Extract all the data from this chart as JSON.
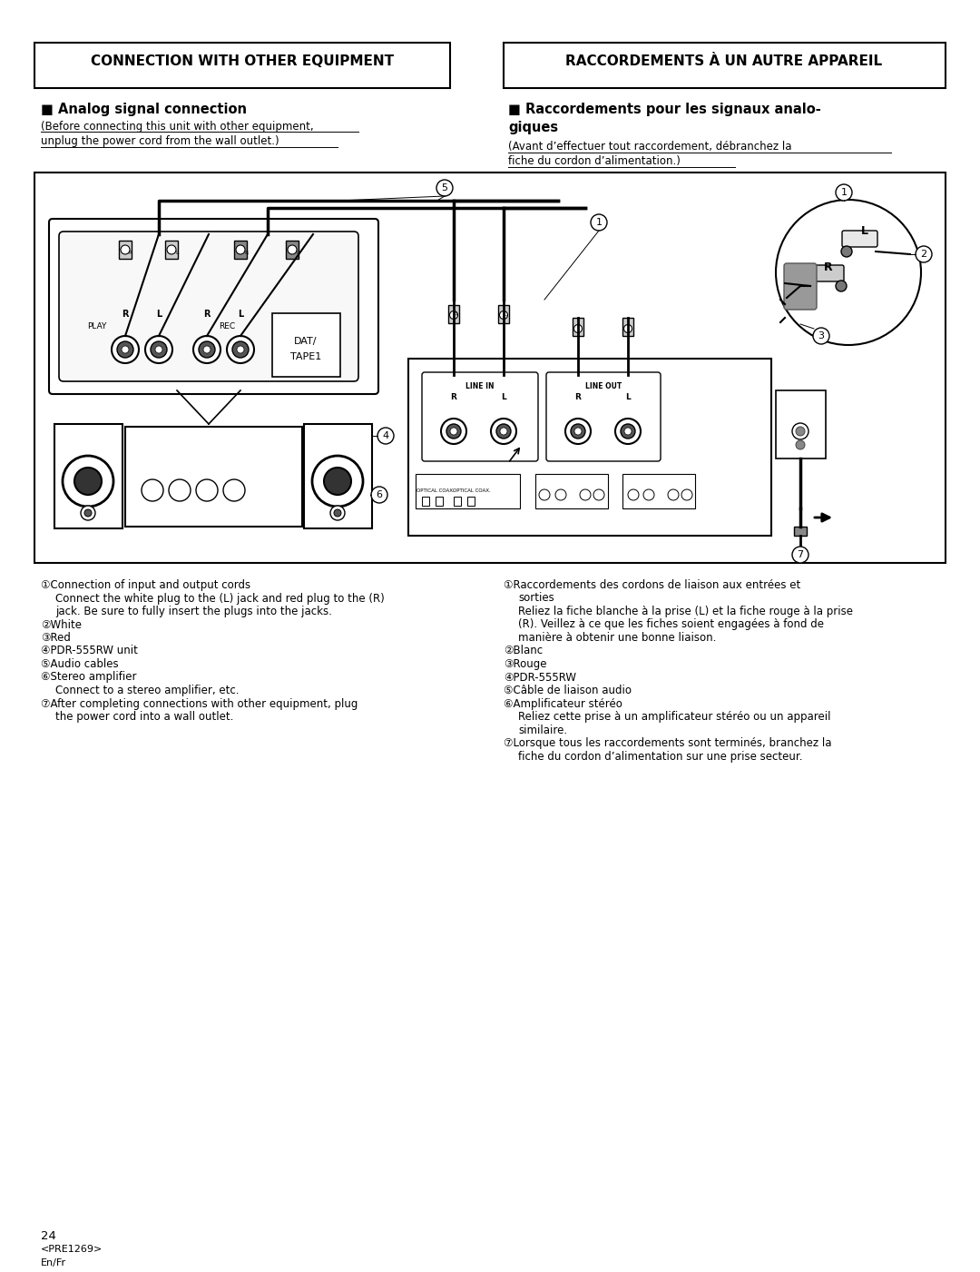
{
  "background_color": "#ffffff",
  "page_width": 10.8,
  "page_height": 14.01,
  "left_header": "CONNECTION WITH OTHER EQUIPMENT",
  "right_header": "RACCORDEMENTS À UN AUTRE APPAREIL",
  "left_section_title": "■ Analog signal connection",
  "left_subtitle_line1": "(Before connecting this unit with other equipment,",
  "left_subtitle_line2": "unplug the power cord from the wall outlet.)",
  "right_section_title_line1": "■ Raccordements pour les signaux analo-",
  "right_section_title_line2": "giques",
  "right_subtitle_line1": "(Avant d’effectuer tout raccordement, débranchez la",
  "right_subtitle_line2": "fiche du cordon d’alimentation.)",
  "left_notes_raw": [
    {
      "bullet": "①",
      "title": "Connection of input and output cords",
      "indent": false
    },
    {
      "bullet": "",
      "title": "Connect the white plug to the (L) jack and red plug to the (R)",
      "indent": true
    },
    {
      "bullet": "",
      "title": "jack. Be sure to fully insert the plugs into the jacks.",
      "indent": true
    },
    {
      "bullet": "②",
      "title": "White",
      "indent": false
    },
    {
      "bullet": "③",
      "title": "Red",
      "indent": false
    },
    {
      "bullet": "④",
      "title": "PDR-555RW unit",
      "indent": false
    },
    {
      "bullet": "⑤",
      "title": "Audio cables",
      "indent": false
    },
    {
      "bullet": "⑥",
      "title": "Stereo amplifier",
      "indent": false
    },
    {
      "bullet": "",
      "title": "Connect to a stereo amplifier, etc.",
      "indent": true
    },
    {
      "bullet": "⑦",
      "title": "After completing connections with other equipment, plug",
      "indent": false
    },
    {
      "bullet": "",
      "title": "the power cord into a wall outlet.",
      "indent": true
    }
  ],
  "right_notes_raw": [
    {
      "bullet": "①",
      "title": "Raccordements des cordons de liaison aux entrées et",
      "indent": false
    },
    {
      "bullet": "",
      "title": "sorties",
      "indent": true
    },
    {
      "bullet": "",
      "title": "Reliez la fiche blanche à la prise (L) et la fiche rouge à la prise",
      "indent": true
    },
    {
      "bullet": "",
      "title": "(R). Veillez à ce que les fiches soient engagées à fond de",
      "indent": true
    },
    {
      "bullet": "",
      "title": "manière à obtenir une bonne liaison.",
      "indent": true
    },
    {
      "bullet": "②",
      "title": "Blanc",
      "indent": false
    },
    {
      "bullet": "③",
      "title": "Rouge",
      "indent": false
    },
    {
      "bullet": "④",
      "title": "PDR-555RW",
      "indent": false
    },
    {
      "bullet": "⑤",
      "title": "Câble de liaison audio",
      "indent": false
    },
    {
      "bullet": "⑥",
      "title": "Amplificateur stéréo",
      "indent": false
    },
    {
      "bullet": "",
      "title": "Reliez cette prise à un amplificateur stéréo ou un appareil",
      "indent": true
    },
    {
      "bullet": "",
      "title": "similaire.",
      "indent": true
    },
    {
      "bullet": "⑦",
      "title": "Lorsque tous les raccordements sont terminés, branchez la",
      "indent": false
    },
    {
      "bullet": "",
      "title": "fiche du cordon d’alimentation sur une prise secteur.",
      "indent": true
    }
  ],
  "footer_page": "24",
  "footer_code": "<PRE1269>",
  "footer_lang": "En/Fr"
}
